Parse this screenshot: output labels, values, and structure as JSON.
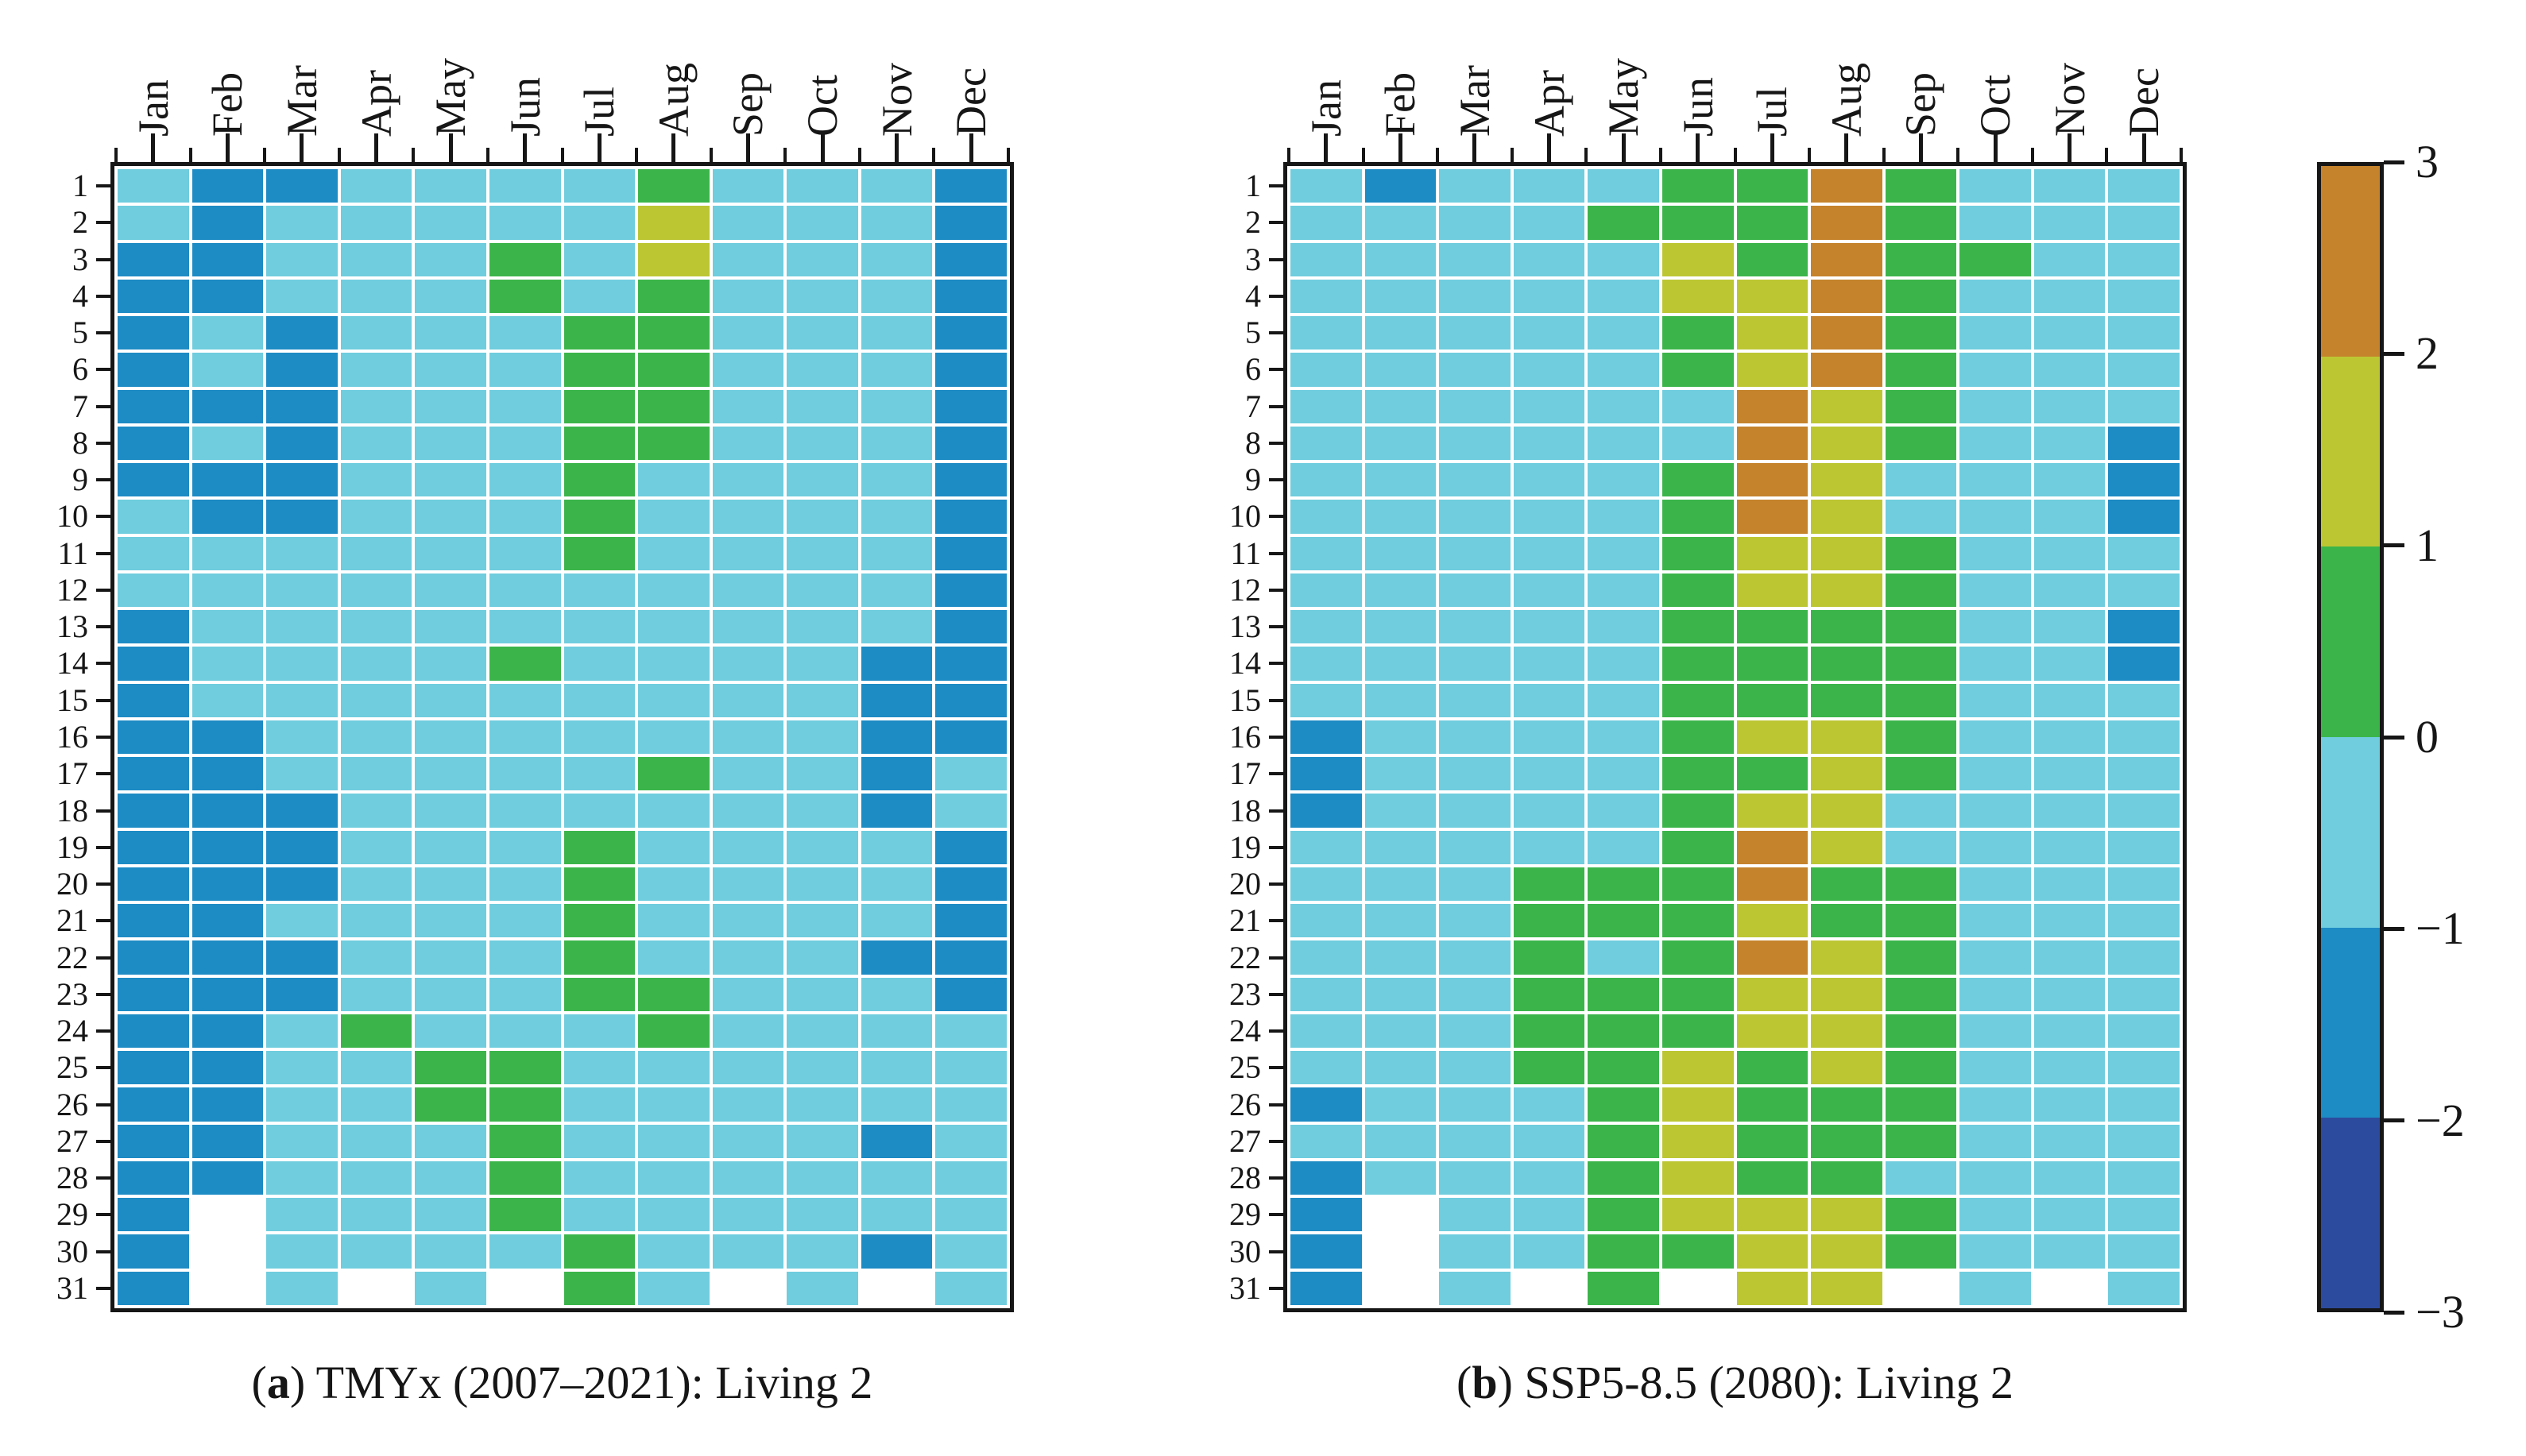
{
  "figure": {
    "months": [
      "Jan",
      "Feb",
      "Mar",
      "Apr",
      "May",
      "Jun",
      "Jul",
      "Aug",
      "Sep",
      "Oct",
      "Nov",
      "Dec"
    ],
    "days": [
      "1",
      "2",
      "3",
      "4",
      "5",
      "6",
      "7",
      "8",
      "9",
      "10",
      "11",
      "12",
      "13",
      "14",
      "15",
      "16",
      "17",
      "18",
      "19",
      "20",
      "21",
      "22",
      "23",
      "24",
      "25",
      "26",
      "27",
      "28",
      "29",
      "30",
      "31"
    ],
    "panels": [
      {
        "id": "a",
        "caption_open": "(",
        "caption_bold": "a",
        "caption_rest": ") TMYx (2007–2021): Living 2"
      },
      {
        "id": "b",
        "caption_open": "(",
        "caption_bold": "b",
        "caption_rest": ") SSP5-8.5 (2080): Living 2"
      }
    ],
    "colorbar": {
      "tick_labels": [
        "3",
        "2",
        "1",
        "0",
        "−1",
        "−2",
        "−3"
      ],
      "segments_top_to_bottom": [
        "O",
        "Y",
        "G",
        "L",
        "B",
        "D"
      ]
    },
    "palette": {
      "O": "#c5832c",
      "Y": "#bcc633",
      "G": "#3bb54a",
      "L": "#6fcdde",
      "B": "#1d8bc4",
      "D": "#2d4b9e",
      "W": "#ffffff"
    },
    "code_meaning": {
      "O": "2 to 3",
      "Y": "1 to 2",
      "G": "0 to 1",
      "L": "-1 to 0",
      "B": "-2 to -1",
      "D": "-3 to -2",
      "W": "no data (day not in month)"
    }
  },
  "chart_data": [
    {
      "type": "heatmap",
      "title": "(a) TMYx (2007–2021): Living 2",
      "x_categories": [
        "Jan",
        "Feb",
        "Mar",
        "Apr",
        "May",
        "Jun",
        "Jul",
        "Aug",
        "Sep",
        "Oct",
        "Nov",
        "Dec"
      ],
      "y_categories": [
        1,
        2,
        3,
        4,
        5,
        6,
        7,
        8,
        9,
        10,
        11,
        12,
        13,
        14,
        15,
        16,
        17,
        18,
        19,
        20,
        21,
        22,
        23,
        24,
        25,
        26,
        27,
        28,
        29,
        30,
        31
      ],
      "cell_encoding": "each string = one day row, one letter per month; O=2..3, Y=1..2, G=0..1, L=-1..0, B=-2..-1, D=-3..-2, W=missing",
      "values_coded": [
        "LBBLLLLGLLLB",
        "LBLLLLLYLLLB",
        "BBLLLGLYLLLB",
        "BBLLLGLGLLLB",
        "BLBLLLGGLLLB",
        "BLBLLLGGLLLB",
        "BBBLLLGGLLLB",
        "BLBLLLGGLLLB",
        "BBBLLLGLLLLB",
        "LBBLLLGLLLLB",
        "LLLLLLGLLLLB",
        "LLLLLLLLLLLB",
        "BLLLLLLLLLLB",
        "BLLLLGLLLLBB",
        "BLLLLLLLLLBB",
        "BBLLLLLLLLBB",
        "BBLLLLLGLLBL",
        "BBBLLLLLLLBL",
        "BBBLLLGLLLLB",
        "BBBLLLGLLLLB",
        "BBLLLLGLLLLB",
        "BBBLLLGLLLBB",
        "BBBLLLGGLLLB",
        "BBLGLLLGLLLL",
        "BBLLGGLLLLLL",
        "BBLLGGLLLLLL",
        "BBLLLGLLLLBL",
        "BBLLLGLLLLLL",
        "BWLLLGLLLLLL",
        "BWLLLLGLLLBL",
        "BWLWLWGLWLWL"
      ],
      "colorbar_range": [
        -3,
        3
      ],
      "colorbar_ticks": [
        3,
        2,
        1,
        0,
        -1,
        -2,
        -3
      ],
      "legend_position": "shared colorbar at right"
    },
    {
      "type": "heatmap",
      "title": "(b) SSP5-8.5 (2080): Living 2",
      "x_categories": [
        "Jan",
        "Feb",
        "Mar",
        "Apr",
        "May",
        "Jun",
        "Jul",
        "Aug",
        "Sep",
        "Oct",
        "Nov",
        "Dec"
      ],
      "y_categories": [
        1,
        2,
        3,
        4,
        5,
        6,
        7,
        8,
        9,
        10,
        11,
        12,
        13,
        14,
        15,
        16,
        17,
        18,
        19,
        20,
        21,
        22,
        23,
        24,
        25,
        26,
        27,
        28,
        29,
        30,
        31
      ],
      "cell_encoding": "each string = one day row, one letter per month; O=2..3, Y=1..2, G=0..1, L=-1..0, B=-2..-1, D=-3..-2, W=missing",
      "values_coded": [
        "LBLLLGGOGLLL",
        "LLLLGGGOGLLL",
        "LLLLLYGOGGLL",
        "LLLLLYYOGLLL",
        "LLLLLGYOGLLL",
        "LLLLLGYOGLLL",
        "LLLLLLOYGLLL",
        "LLLLLLOYGLLB",
        "LLLLLGOYLLLB",
        "LLLLLGOYLLLB",
        "LLLLLGYYGLLL",
        "LLLLLGYYGLLL",
        "LLLLLGGGGLLB",
        "LLLLLGGGGLLB",
        "LLLLLGGGGLLL",
        "BLLLLGYYGLLL",
        "BLLLLGGYGLLL",
        "BLLLLGYYLLLL",
        "LLLLLGOYLLLL",
        "LLLGGGOGGLLL",
        "LLLGGGYGGLLL",
        "LLLGLGOYGLLL",
        "LLLGGGYYGLLL",
        "LLLGGGYYGLLL",
        "LLLGGYGYGLLL",
        "BLLLGYGGGLLL",
        "LLLLGYGGGLLL",
        "BLLLGYGGLLLL",
        "BWLLGYYYGLLL",
        "BWLLGGYYGLLL",
        "BWLWGWYYWLWL"
      ],
      "colorbar_range": [
        -3,
        3
      ],
      "colorbar_ticks": [
        3,
        2,
        1,
        0,
        -1,
        -2,
        -3
      ],
      "legend_position": "shared colorbar at right"
    }
  ]
}
